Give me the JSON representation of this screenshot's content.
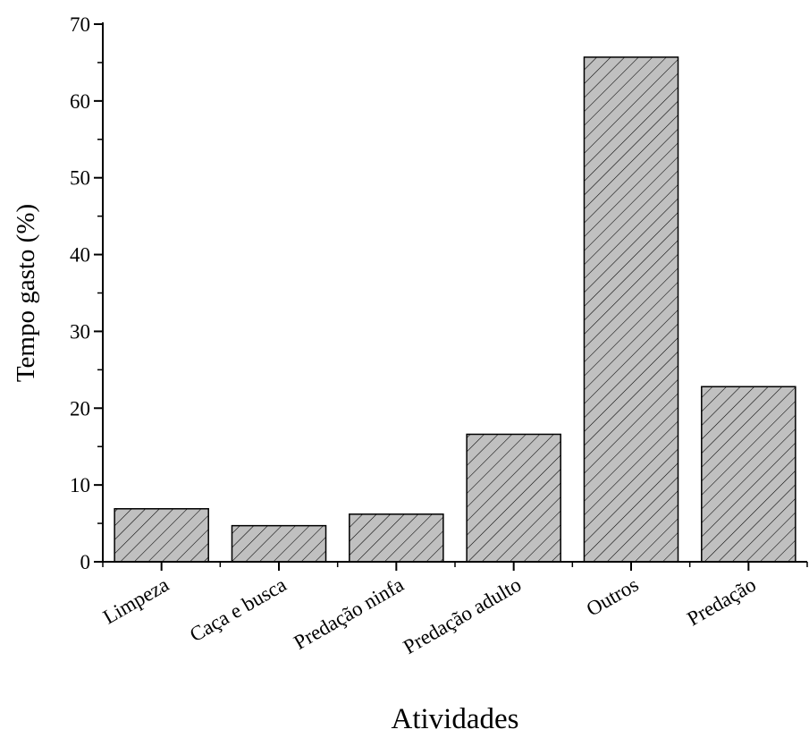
{
  "chart_data": {
    "type": "bar",
    "title": "",
    "xlabel": "Atividades",
    "ylabel": "Tempo gasto (%)",
    "categories": [
      "Limpeza",
      "Caça e busca",
      "Predação ninfa",
      "Predação adulto",
      "Outros",
      "Predação"
    ],
    "values": [
      6.9,
      4.7,
      6.2,
      16.6,
      65.7,
      22.8
    ],
    "ylim": [
      0,
      70
    ],
    "yticks": [
      0,
      10,
      20,
      30,
      40,
      50,
      60,
      70
    ],
    "grid": false,
    "legend": "none",
    "bar_fill": "#c0c0c0",
    "bar_stroke": "#000000",
    "hatch": "diagonal"
  }
}
